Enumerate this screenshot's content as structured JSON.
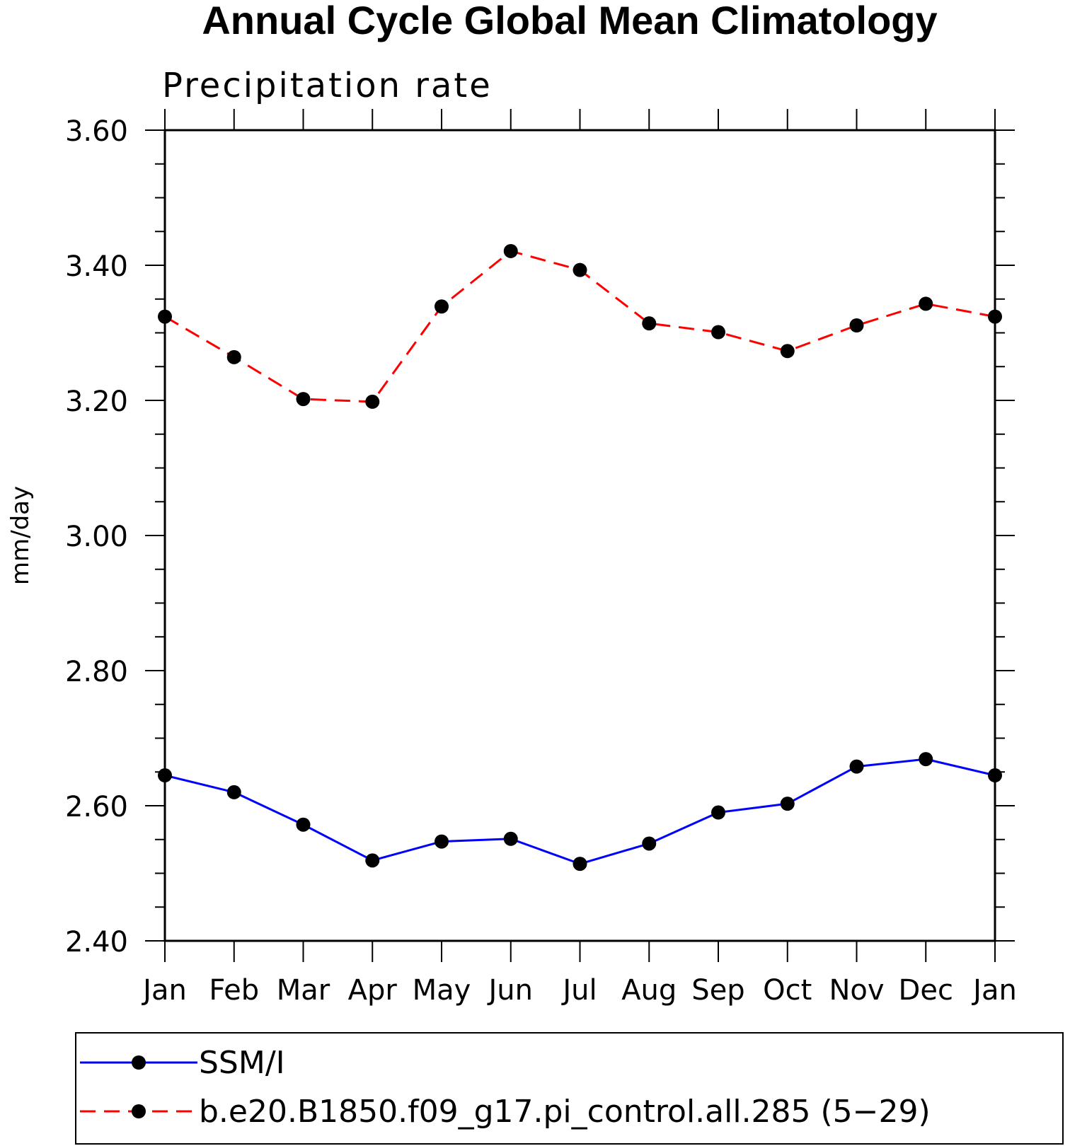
{
  "chart_data": {
    "type": "line",
    "title": "Annual Cycle Global Mean Climatology",
    "subtitle": "Precipitation rate",
    "ylabel": "mm/day",
    "xlabel": "",
    "ylim": [
      2.4,
      3.6
    ],
    "yticks": [
      "2.40",
      "2.60",
      "2.80",
      "3.00",
      "3.20",
      "3.40",
      "3.60"
    ],
    "categories": [
      "Jan",
      "Feb",
      "Mar",
      "Apr",
      "May",
      "Jun",
      "Jul",
      "Aug",
      "Sep",
      "Oct",
      "Nov",
      "Dec",
      "Jan"
    ],
    "grid": false,
    "legend_position": "bottom",
    "series": [
      {
        "name": "SSM/I",
        "color": "#0000ff",
        "line_style": "solid",
        "marker": "filled-circle",
        "values": [
          2.645,
          2.62,
          2.572,
          2.519,
          2.547,
          2.551,
          2.514,
          2.544,
          2.59,
          2.603,
          2.658,
          2.669,
          2.645
        ]
      },
      {
        "name": "b.e20.B1850.f09_g17.pi_control.all.285 (5−29)",
        "color": "#ff0000",
        "line_style": "dashed",
        "marker": "filled-circle",
        "values": [
          3.324,
          3.264,
          3.202,
          3.198,
          3.339,
          3.421,
          3.393,
          3.314,
          3.301,
          3.273,
          3.311,
          3.343,
          3.324
        ]
      }
    ]
  }
}
